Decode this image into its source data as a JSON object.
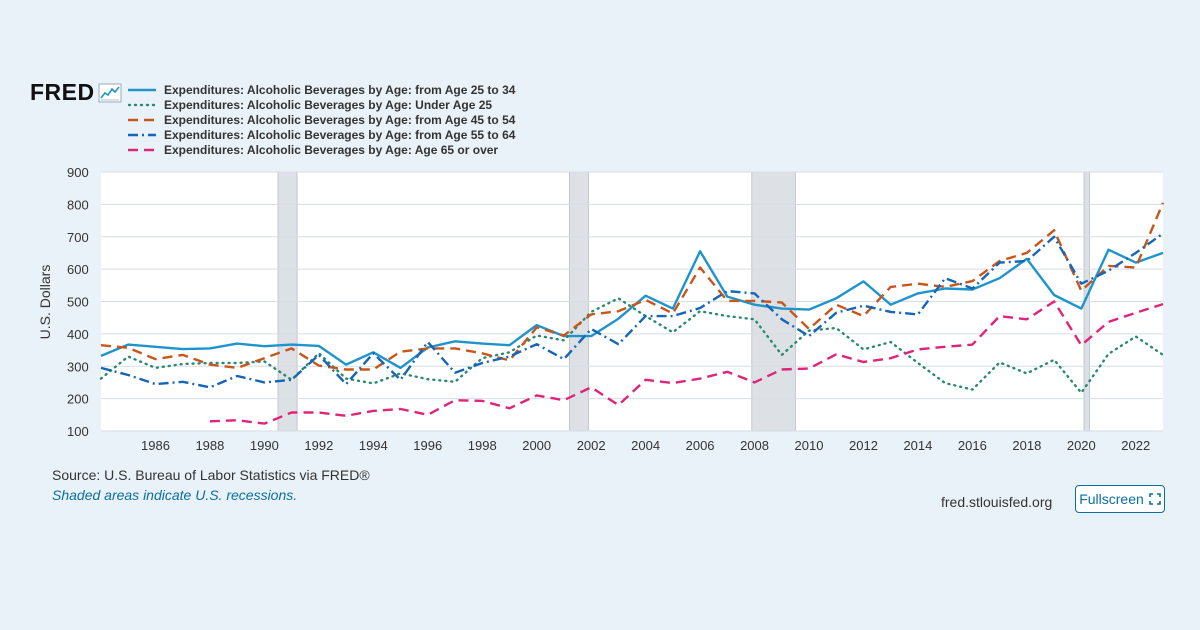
{
  "logo": {
    "text": "FRED"
  },
  "legend": {
    "series": [
      {
        "label": "Expenditures: Alcoholic Beverages by Age: from Age 25 to 34",
        "color": "#1f94cc",
        "style": "solid"
      },
      {
        "label": "Expenditures: Alcoholic Beverages by Age: Under Age 25",
        "color": "#2a8a70",
        "style": "dotted"
      },
      {
        "label": "Expenditures: Alcoholic Beverages by Age: from Age 45 to 54",
        "color": "#c8561a",
        "style": "dashed"
      },
      {
        "label": "Expenditures: Alcoholic Beverages by Age: from Age 55 to 64",
        "color": "#1565b8",
        "style": "dashdot"
      },
      {
        "label": "Expenditures: Alcoholic Beverages by Age: Age 65 or over",
        "color": "#e0247a",
        "style": "dashed"
      }
    ]
  },
  "chart_data": {
    "type": "line",
    "title": "",
    "xlabel": "",
    "ylabel": "U.S. Dollars",
    "xlim": [
      1984,
      2023
    ],
    "ylim": [
      100,
      900
    ],
    "y_ticks": [
      100,
      200,
      300,
      400,
      500,
      600,
      700,
      800,
      900
    ],
    "x_ticks": [
      1986,
      1988,
      1990,
      1992,
      1994,
      1996,
      1998,
      2000,
      2002,
      2004,
      2006,
      2008,
      2010,
      2012,
      2014,
      2016,
      2018,
      2020,
      2022
    ],
    "grid": "horizontal",
    "recessions": [
      [
        1990.5,
        1991.2
      ],
      [
        2001.2,
        2001.9
      ],
      [
        2007.9,
        2009.5
      ],
      [
        2020.1,
        2020.3
      ]
    ],
    "series": [
      {
        "name": "Expenditures: Alcoholic Beverages by Age: from Age 25 to 34",
        "color": "#1f94cc",
        "dash": "",
        "x": [
          1984,
          1985,
          1986,
          1987,
          1988,
          1989,
          1990,
          1991,
          1992,
          1993,
          1994,
          1995,
          1996,
          1997,
          1998,
          1999,
          2000,
          2001,
          2002,
          2003,
          2004,
          2005,
          2006,
          2007,
          2008,
          2009,
          2010,
          2011,
          2012,
          2013,
          2014,
          2015,
          2016,
          2017,
          2018,
          2019,
          2020,
          2021,
          2022,
          2023
        ],
        "values": [
          332,
          367,
          360,
          353,
          355,
          370,
          362,
          367,
          363,
          305,
          343,
          295,
          358,
          377,
          370,
          365,
          427,
          393,
          393,
          447,
          518,
          478,
          655,
          515,
          490,
          478,
          475,
          510,
          562,
          490,
          525,
          540,
          537,
          572,
          632,
          520,
          478,
          660,
          620,
          650
        ]
      },
      {
        "name": "Expenditures: Alcoholic Beverages by Age: Under Age 25",
        "color": "#2a8a70",
        "dash": "1,5",
        "x": [
          1984,
          1985,
          1986,
          1987,
          1988,
          1989,
          1990,
          1991,
          1992,
          1993,
          1994,
          1995,
          1996,
          1997,
          1998,
          1999,
          2000,
          2001,
          2002,
          2003,
          2004,
          2005,
          2006,
          2007,
          2008,
          2009,
          2010,
          2011,
          2012,
          2013,
          2014,
          2015,
          2016,
          2017,
          2018,
          2019,
          2020,
          2021,
          2022,
          2023
        ],
        "values": [
          262,
          330,
          295,
          307,
          310,
          310,
          315,
          258,
          340,
          262,
          247,
          278,
          260,
          252,
          325,
          343,
          395,
          380,
          468,
          510,
          455,
          405,
          470,
          455,
          445,
          335,
          410,
          418,
          352,
          375,
          310,
          248,
          228,
          312,
          278,
          320,
          218,
          338,
          392,
          335
        ]
      },
      {
        "name": "Expenditures: Alcoholic Beverages by Age: from Age 45 to 54",
        "color": "#c8561a",
        "dash": "10,6",
        "x": [
          1984,
          1985,
          1986,
          1987,
          1988,
          1989,
          1990,
          1991,
          1992,
          1993,
          1994,
          1995,
          1996,
          1997,
          1998,
          1999,
          2000,
          2001,
          2002,
          2003,
          2004,
          2005,
          2006,
          2007,
          2008,
          2009,
          2010,
          2011,
          2012,
          2013,
          2014,
          2015,
          2016,
          2017,
          2018,
          2019,
          2020,
          2021,
          2022,
          2023
        ],
        "values": [
          365,
          357,
          322,
          335,
          305,
          295,
          325,
          355,
          302,
          290,
          290,
          345,
          355,
          355,
          340,
          318,
          420,
          395,
          460,
          470,
          505,
          463,
          605,
          502,
          502,
          497,
          415,
          490,
          455,
          545,
          555,
          545,
          563,
          625,
          650,
          720,
          533,
          610,
          605,
          805
        ]
      },
      {
        "name": "Expenditures: Alcoholic Beverages by Age: from Age 55 to 64",
        "color": "#1565b8",
        "dash": "10,4,2,4",
        "x": [
          1984,
          1985,
          1986,
          1987,
          1988,
          1989,
          1990,
          1991,
          1992,
          1993,
          1994,
          1995,
          1996,
          1997,
          1998,
          1999,
          2000,
          2001,
          2002,
          2003,
          2004,
          2005,
          2006,
          2007,
          2008,
          2009,
          2010,
          2011,
          2012,
          2013,
          2014,
          2015,
          2016,
          2017,
          2018,
          2019,
          2020,
          2021,
          2022,
          2023
        ],
        "values": [
          295,
          273,
          245,
          252,
          235,
          270,
          250,
          258,
          335,
          245,
          340,
          258,
          375,
          280,
          310,
          330,
          368,
          322,
          415,
          368,
          455,
          455,
          480,
          532,
          525,
          445,
          393,
          465,
          487,
          468,
          460,
          572,
          540,
          620,
          625,
          700,
          555,
          595,
          650,
          710
        ]
      },
      {
        "name": "Expenditures: Alcoholic Beverages by Age: Age 65 or over",
        "color": "#e0247a",
        "dash": "10,6",
        "x": [
          1988,
          1989,
          1990,
          1991,
          1992,
          1993,
          1994,
          1995,
          1996,
          1997,
          1998,
          1999,
          2000,
          2001,
          2002,
          2003,
          2004,
          2005,
          2006,
          2007,
          2008,
          2009,
          2010,
          2011,
          2012,
          2013,
          2014,
          2015,
          2016,
          2017,
          2018,
          2019,
          2020,
          2021,
          2022,
          2023
        ],
        "values": [
          130,
          133,
          123,
          157,
          157,
          147,
          162,
          168,
          150,
          195,
          193,
          170,
          210,
          195,
          235,
          180,
          258,
          248,
          262,
          283,
          250,
          290,
          293,
          337,
          313,
          325,
          352,
          360,
          367,
          455,
          445,
          500,
          365,
          437,
          465,
          492
        ]
      }
    ]
  },
  "footer": {
    "source": "Source: U.S. Bureau of Labor Statistics via FRED®",
    "note": "Shaded areas indicate U.S. recessions.",
    "site": "fred.stlouisfed.org",
    "fullscreen_label": "Fullscreen"
  }
}
